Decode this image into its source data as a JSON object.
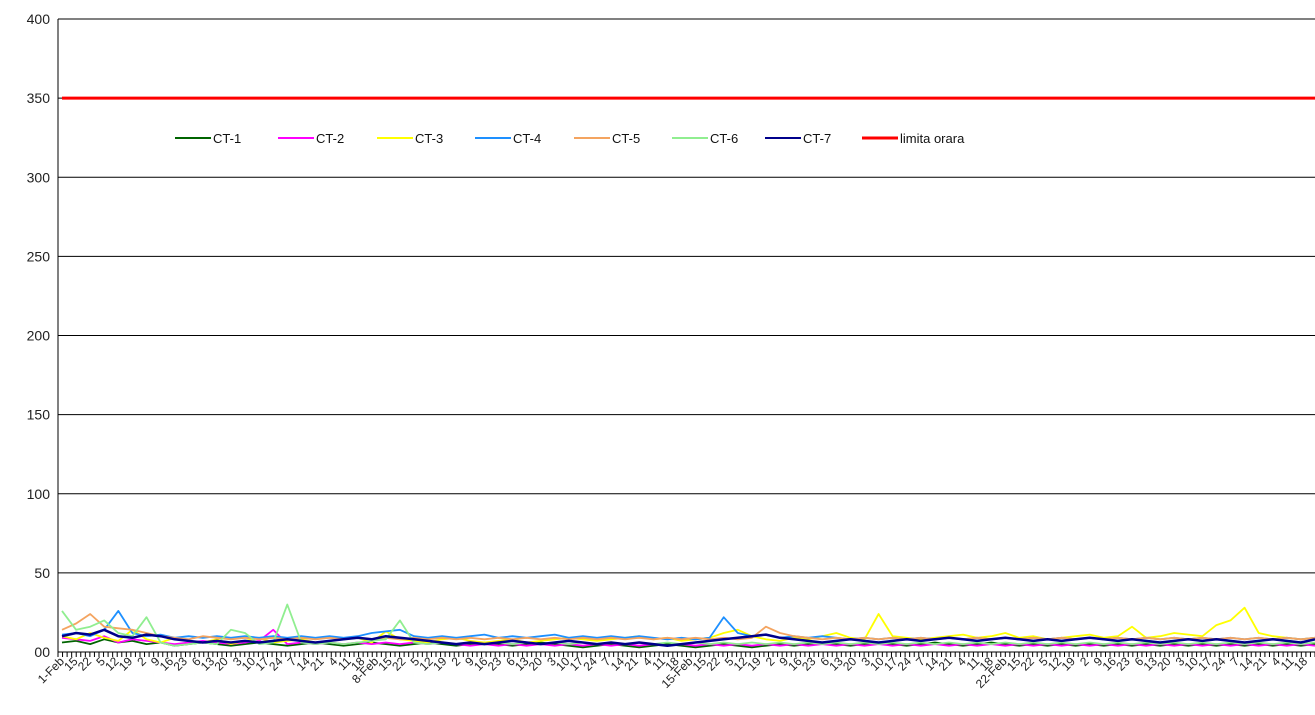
{
  "chart_data": {
    "type": "line",
    "title": "",
    "xlabel": "",
    "ylabel": "",
    "ylim": [
      0,
      400
    ],
    "yticks": [
      0,
      50,
      100,
      150,
      200,
      250,
      300,
      350,
      400
    ],
    "ytick_labels": [
      "00",
      "50",
      "100",
      "150",
      "200",
      "250",
      "300",
      "350",
      "400"
    ],
    "grid": "horizontal",
    "legend_position": "top-left",
    "x_tick_labels": [
      "1-Feb",
      "15",
      "22",
      "5",
      "12",
      "19",
      "2",
      "9",
      "16",
      "23",
      "6",
      "13",
      "20",
      "3",
      "10",
      "17",
      "24",
      "7",
      "14",
      "21",
      "4",
      "11",
      "18",
      "8-Feb",
      "15",
      "22",
      "5",
      "12",
      "19",
      "2",
      "9",
      "16",
      "23",
      "6",
      "13",
      "20",
      "3",
      "10",
      "17",
      "24",
      "7",
      "14",
      "21",
      "4",
      "11",
      "18",
      "15-Feb",
      "15",
      "22",
      "5",
      "12",
      "19",
      "2",
      "9",
      "16",
      "23",
      "6",
      "13",
      "20",
      "3",
      "10",
      "17",
      "24",
      "7",
      "14",
      "21",
      "4",
      "11",
      "18",
      "22-Feb",
      "15",
      "22",
      "5",
      "12",
      "19",
      "2",
      "9",
      "16",
      "23",
      "6",
      "13",
      "20",
      "3",
      "10",
      "17",
      "24",
      "7",
      "14",
      "21",
      "4",
      "11",
      "18"
    ],
    "series": [
      {
        "name": "CT-1",
        "color": "#006400",
        "values": [
          6,
          7,
          5,
          8,
          6,
          7,
          5,
          6,
          4,
          5,
          6,
          5,
          4,
          5,
          6,
          5,
          4,
          5,
          6,
          5,
          4,
          5,
          6,
          5,
          4,
          5,
          6,
          5,
          4,
          5,
          6,
          5,
          4,
          5,
          6,
          5,
          4,
          3,
          4,
          5,
          4,
          3,
          4,
          5,
          4,
          3,
          4,
          5,
          4,
          3,
          4,
          5,
          4,
          5,
          6,
          5,
          4,
          5,
          6,
          5,
          4,
          5,
          6,
          5,
          4,
          5,
          6,
          5,
          4,
          5,
          4,
          5,
          4,
          5,
          4,
          5,
          4,
          5,
          4,
          5,
          4,
          5,
          4,
          5,
          4,
          5,
          4,
          5,
          4,
          5
        ]
      },
      {
        "name": "CT-2",
        "color": "#ff00ff",
        "values": [
          9,
          8,
          7,
          10,
          6,
          8,
          7,
          6,
          5,
          6,
          7,
          6,
          5,
          6,
          7,
          14,
          5,
          6,
          5,
          6,
          5,
          6,
          5,
          6,
          5,
          6,
          5,
          6,
          5,
          4,
          5,
          4,
          5,
          4,
          5,
          4,
          5,
          4,
          5,
          4,
          5,
          4,
          5,
          4,
          5,
          4,
          5,
          4,
          5,
          4,
          5,
          4,
          5,
          4,
          5,
          4,
          5,
          4,
          5,
          4,
          5,
          4,
          5,
          4,
          5,
          4,
          5,
          4,
          5,
          4,
          5,
          4,
          5,
          4,
          5,
          4,
          5,
          4,
          5,
          4,
          5,
          4,
          5,
          4,
          5,
          4,
          5,
          4,
          5,
          4
        ]
      },
      {
        "name": "CT-3",
        "color": "#ffff00",
        "values": [
          10,
          8,
          12,
          9,
          7,
          14,
          8,
          6,
          9,
          7,
          6,
          8,
          5,
          7,
          9,
          6,
          7,
          8,
          6,
          7,
          8,
          9,
          6,
          13,
          8,
          7,
          6,
          8,
          9,
          7,
          6,
          7,
          8,
          6,
          7,
          8,
          9,
          8,
          7,
          8,
          9,
          10,
          8,
          9,
          7,
          8,
          9,
          12,
          14,
          10,
          8,
          7,
          9,
          8,
          10,
          12,
          9,
          8,
          24,
          10,
          9,
          8,
          9,
          10,
          11,
          9,
          10,
          12,
          9,
          10,
          8,
          9,
          10,
          11,
          9,
          10,
          16,
          9,
          10,
          12,
          11,
          10,
          17,
          20,
          28,
          12,
          10,
          9,
          8,
          9
        ]
      },
      {
        "name": "CT-4",
        "color": "#1e90ff",
        "values": [
          11,
          12,
          10,
          14,
          26,
          12,
          10,
          11,
          9,
          10,
          9,
          10,
          9,
          10,
          9,
          10,
          9,
          10,
          9,
          10,
          9,
          10,
          12,
          13,
          14,
          10,
          9,
          10,
          9,
          10,
          11,
          9,
          10,
          9,
          10,
          11,
          9,
          10,
          9,
          10,
          9,
          10,
          9,
          8,
          9,
          8,
          9,
          22,
          12,
          10,
          11,
          9,
          10,
          9,
          10,
          9,
          8,
          9,
          8,
          9,
          8,
          9,
          8,
          9,
          8,
          9,
          8,
          9,
          8,
          9,
          8,
          9,
          8,
          9,
          8,
          9,
          8,
          9,
          8,
          9,
          8,
          9,
          8,
          9,
          8,
          9,
          8,
          9,
          8,
          9
        ]
      },
      {
        "name": "CT-5",
        "color": "#f4a460",
        "values": [
          14,
          18,
          24,
          16,
          15,
          14,
          12,
          10,
          9,
          8,
          10,
          9,
          8,
          9,
          8,
          9,
          8,
          9,
          8,
          9,
          8,
          9,
          8,
          9,
          8,
          9,
          8,
          9,
          8,
          9,
          8,
          9,
          8,
          9,
          8,
          9,
          8,
          9,
          8,
          9,
          8,
          9,
          8,
          9,
          8,
          9,
          8,
          9,
          8,
          9,
          16,
          12,
          10,
          9,
          8,
          9,
          8,
          9,
          8,
          9,
          8,
          9,
          8,
          9,
          8,
          9,
          8,
          9,
          8,
          9,
          8,
          9,
          8,
          9,
          8,
          9,
          8,
          9,
          8,
          9,
          8,
          9,
          8,
          9,
          8,
          9,
          8,
          9,
          8,
          9
        ]
      },
      {
        "name": "CT-6",
        "color": "#90ee90",
        "values": [
          26,
          14,
          16,
          20,
          12,
          10,
          22,
          6,
          4,
          5,
          6,
          5,
          14,
          12,
          5,
          6,
          30,
          6,
          5,
          6,
          5,
          6,
          7,
          8,
          20,
          6,
          5,
          6,
          5,
          6,
          5,
          6,
          5,
          6,
          5,
          6,
          5,
          6,
          5,
          6,
          5,
          6,
          5,
          6,
          5,
          6,
          5,
          6,
          5,
          6,
          5,
          6,
          5,
          6,
          5,
          6,
          5,
          6,
          5,
          6,
          5,
          6,
          5,
          6,
          5,
          6,
          5,
          6,
          5,
          6,
          5,
          6,
          5,
          6,
          5,
          6,
          5,
          6,
          5,
          6,
          5,
          6,
          5,
          6,
          5,
          6,
          5,
          6,
          5,
          6
        ]
      },
      {
        "name": "CT-7",
        "color": "#00008b",
        "values": [
          10,
          12,
          11,
          14,
          10,
          9,
          11,
          10,
          8,
          7,
          6,
          7,
          6,
          7,
          6,
          7,
          8,
          7,
          6,
          7,
          8,
          9,
          8,
          10,
          9,
          8,
          7,
          6,
          5,
          6,
          5,
          6,
          7,
          6,
          5,
          6,
          7,
          6,
          5,
          6,
          5,
          6,
          5,
          4,
          5,
          6,
          7,
          8,
          9,
          10,
          11,
          9,
          8,
          7,
          6,
          7,
          8,
          7,
          6,
          7,
          8,
          7,
          8,
          9,
          8,
          7,
          8,
          9,
          8,
          7,
          8,
          7,
          8,
          9,
          8,
          7,
          8,
          7,
          6,
          7,
          8,
          7,
          8,
          7,
          6,
          7,
          8,
          7,
          6,
          8
        ]
      },
      {
        "name": "limita orara",
        "color": "#ff0000",
        "values": [
          350,
          350,
          350,
          350,
          350,
          350,
          350,
          350,
          350,
          350,
          350,
          350,
          350,
          350,
          350,
          350,
          350,
          350,
          350,
          350,
          350,
          350,
          350,
          350,
          350,
          350,
          350,
          350,
          350,
          350,
          350,
          350,
          350,
          350,
          350,
          350,
          350,
          350,
          350,
          350,
          350,
          350,
          350,
          350,
          350,
          350,
          350,
          350,
          350,
          350,
          350,
          350,
          350,
          350,
          350,
          350,
          350,
          350,
          350,
          350,
          350,
          350,
          350,
          350,
          350,
          350,
          350,
          350,
          350,
          350,
          350,
          350,
          350,
          350,
          350,
          350,
          350,
          350,
          350,
          350,
          350,
          350,
          350,
          350,
          350,
          350,
          350,
          350,
          350,
          350
        ]
      }
    ]
  }
}
